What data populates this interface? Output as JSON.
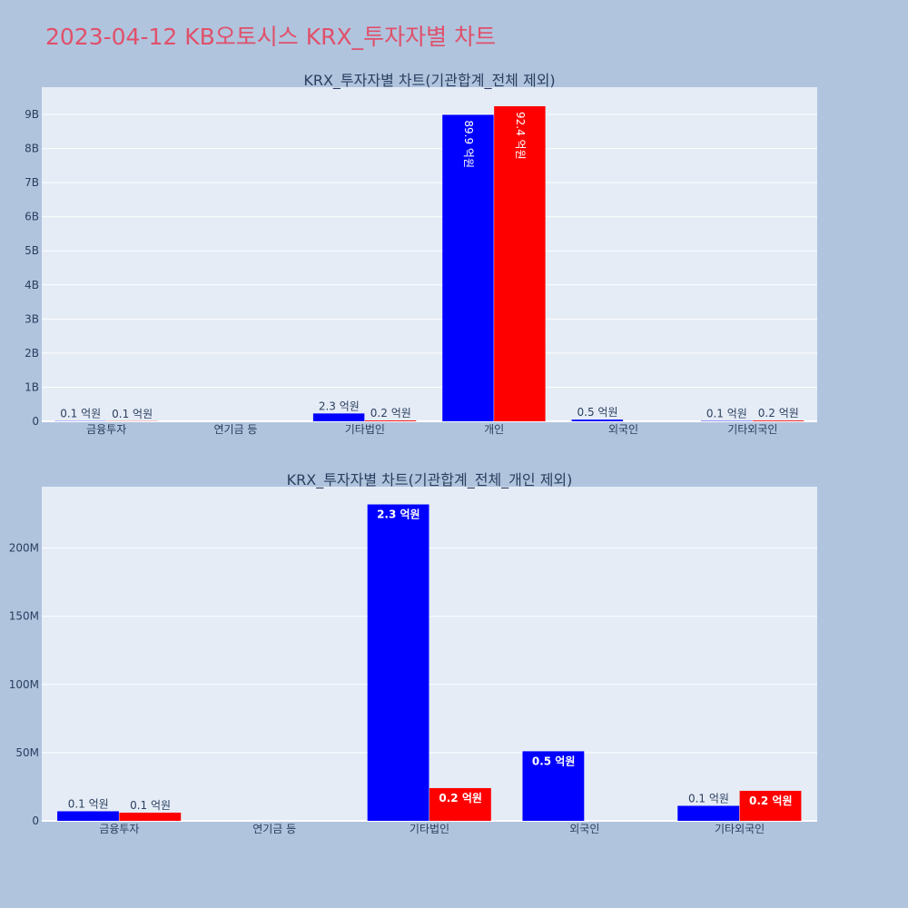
{
  "page": {
    "title": "2023-04-12 KB오토시스 KRX_투자자별 차트"
  },
  "colors": {
    "background": "#b0c4de",
    "plot_bg": "#e5ecf6",
    "grid": "#ffffff",
    "title": "#e0506a",
    "text": "#2a3f5f",
    "series_sell": "#0000ff",
    "series_buy": "#ff0000"
  },
  "chart_data": [
    {
      "type": "bar",
      "title": "KRX_투자자별 차트(기관합계_전체 제외)",
      "xlabel": "",
      "ylabel": "",
      "categories": [
        "금융투자",
        "연기금 등",
        "기타법인",
        "개인",
        "외국인",
        "기타외국인"
      ],
      "ylim": [
        0,
        9800000000
      ],
      "yticks": [
        0,
        1000000000,
        2000000000,
        3000000000,
        4000000000,
        5000000000,
        6000000000,
        7000000000,
        8000000000,
        9000000000
      ],
      "ytick_labels": [
        "0",
        "1B",
        "2B",
        "3B",
        "4B",
        "5B",
        "6B",
        "7B",
        "8B",
        "9B"
      ],
      "grid": true,
      "legend": "none",
      "series": [
        {
          "color": "#0000ff",
          "values": [
            7000000,
            0,
            230000000,
            8990000000,
            51000000,
            11000000
          ],
          "labels": [
            "0.1 억원",
            "",
            "2.3 억원",
            "89.9 억원",
            "0.5 억원",
            "0.1 억원"
          ]
        },
        {
          "color": "#ff0000",
          "values": [
            6000000,
            0,
            24000000,
            9240000000,
            0,
            22000000
          ],
          "labels": [
            "0.1 억원",
            "",
            "0.2 억원",
            "92.4 억원",
            "",
            "0.2 억원"
          ]
        }
      ]
    },
    {
      "type": "bar",
      "title": "KRX_투자자별 차트(기관합계_전체_개인 제외)",
      "xlabel": "",
      "ylabel": "",
      "categories": [
        "금융투자",
        "연기금 등",
        "기타법인",
        "외국인",
        "기타외국인"
      ],
      "ylim": [
        0,
        245000000
      ],
      "yticks": [
        0,
        50000000,
        100000000,
        150000000,
        200000000
      ],
      "ytick_labels": [
        "0",
        "50M",
        "100M",
        "150M",
        "200M"
      ],
      "grid": true,
      "legend": "none",
      "series": [
        {
          "color": "#0000ff",
          "values": [
            7000000,
            0,
            232000000,
            51000000,
            11000000
          ],
          "labels": [
            "0.1 억원",
            "",
            "2.3 억원",
            "0.5 억원",
            "0.1 억원"
          ]
        },
        {
          "color": "#ff0000",
          "values": [
            6000000,
            0,
            24000000,
            0,
            22000000
          ],
          "labels": [
            "0.1 억원",
            "",
            "0.2 억원",
            "",
            "0.2 억원"
          ]
        }
      ]
    }
  ]
}
